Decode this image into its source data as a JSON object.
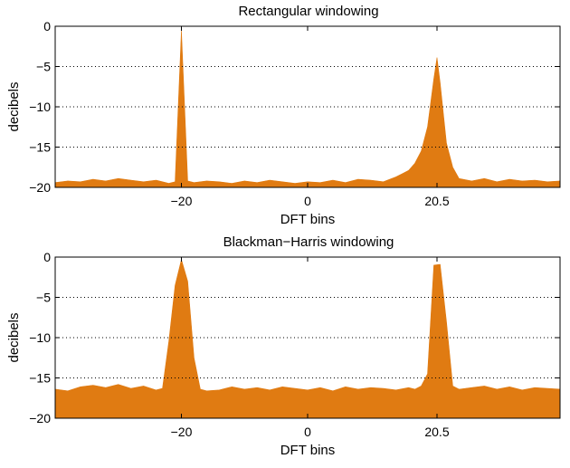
{
  "figure": {
    "fill_color": "#E07B12",
    "grid": "dotted"
  },
  "chart_data": [
    {
      "type": "area",
      "title": "Rectangular windowing",
      "xlabel": "DFT bins",
      "ylabel": "decibels",
      "xlim": [
        -40,
        40
      ],
      "ylim": [
        -20,
        0
      ],
      "xticks": [
        -20,
        0,
        20.5
      ],
      "xtick_labels": [
        "−20",
        "0",
        "20.5"
      ],
      "yticks": [
        0,
        -5,
        -10,
        -15,
        -20
      ],
      "ytick_labels": [
        "0",
        "−5",
        "−10",
        "−15",
        "−20"
      ],
      "x": [
        -40,
        -38,
        -36,
        -34,
        -32,
        -30,
        -28,
        -26,
        -24,
        -22,
        -21,
        -20,
        -19,
        -18,
        -16,
        -14,
        -12,
        -10,
        -8,
        -6,
        -4,
        -2,
        0,
        2,
        4,
        6,
        8,
        10,
        12,
        14,
        15,
        16,
        17,
        18,
        19,
        20,
        20.5,
        21,
        22,
        23,
        24,
        26,
        28,
        30,
        32,
        34,
        36,
        38,
        40
      ],
      "y": [
        -19.4,
        -19.2,
        -19.3,
        -19.0,
        -19.2,
        -18.9,
        -19.1,
        -19.3,
        -19.1,
        -19.5,
        -19.3,
        -0.5,
        -19.2,
        -19.4,
        -19.2,
        -19.3,
        -19.5,
        -19.2,
        -19.4,
        -19.1,
        -19.3,
        -19.5,
        -19.3,
        -19.4,
        -19.1,
        -19.4,
        -19.0,
        -19.1,
        -19.3,
        -18.7,
        -18.3,
        -17.9,
        -17.0,
        -15.5,
        -12.5,
        -6.5,
        -3.9,
        -7.0,
        -14.5,
        -17.5,
        -18.9,
        -19.2,
        -18.9,
        -19.3,
        -19.0,
        -19.2,
        -19.1,
        -19.3,
        -19.2
      ]
    },
    {
      "type": "area",
      "title": "Blackman−Harris windowing",
      "xlabel": "DFT bins",
      "ylabel": "decibels",
      "xlim": [
        -40,
        40
      ],
      "ylim": [
        -20,
        0
      ],
      "xticks": [
        -20,
        0,
        20.5
      ],
      "xtick_labels": [
        "−20",
        "0",
        "20.5"
      ],
      "yticks": [
        0,
        -5,
        -10,
        -15,
        -20
      ],
      "ytick_labels": [
        "0",
        "−5",
        "−10",
        "−15",
        "−20"
      ],
      "x": [
        -40,
        -38,
        -36,
        -34,
        -32,
        -30,
        -28,
        -26,
        -24,
        -23,
        -22,
        -21,
        -20,
        -19,
        -18,
        -17,
        -16,
        -14,
        -12,
        -10,
        -8,
        -6,
        -4,
        -2,
        0,
        2,
        4,
        6,
        8,
        10,
        12,
        14,
        16,
        17,
        18,
        19,
        20,
        21,
        22,
        23,
        24,
        26,
        28,
        30,
        32,
        34,
        36,
        38,
        40
      ],
      "y": [
        -16.4,
        -16.6,
        -16.1,
        -15.9,
        -16.2,
        -15.8,
        -16.3,
        -16.0,
        -16.5,
        -16.3,
        -10.5,
        -3.5,
        -0.3,
        -3.0,
        -12.5,
        -16.4,
        -16.6,
        -16.5,
        -16.1,
        -16.4,
        -16.2,
        -16.5,
        -16.1,
        -16.3,
        -16.5,
        -16.2,
        -16.6,
        -16.1,
        -16.4,
        -16.2,
        -16.3,
        -16.5,
        -16.2,
        -16.4,
        -16.0,
        -14.5,
        -1.0,
        -0.9,
        -8.0,
        -16.0,
        -16.4,
        -16.2,
        -16.0,
        -16.4,
        -16.1,
        -16.5,
        -16.2,
        -16.3,
        -16.4
      ]
    }
  ]
}
